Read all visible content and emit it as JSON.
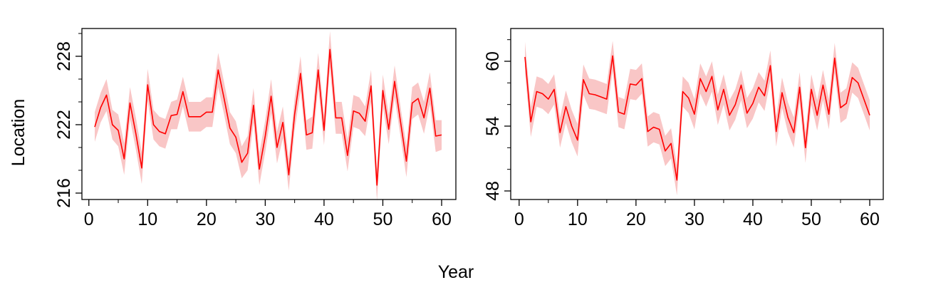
{
  "xlabel": "Year",
  "ylabel": "Location",
  "colors": {
    "line": "#ff0000",
    "band": "#f9c6c6",
    "axis": "#000000"
  },
  "chart_data": [
    {
      "type": "line",
      "xlabel": "",
      "ylabel": "",
      "xlim": [
        1,
        60
      ],
      "ylim": [
        216,
        229
      ],
      "x_ticks": [
        0,
        10,
        20,
        30,
        40,
        50,
        60
      ],
      "y_ticks": [
        216,
        222,
        228
      ],
      "x": [
        1,
        2,
        3,
        4,
        5,
        6,
        7,
        8,
        9,
        10,
        11,
        12,
        13,
        14,
        15,
        16,
        17,
        18,
        19,
        20,
        21,
        22,
        23,
        24,
        25,
        26,
        27,
        28,
        29,
        30,
        31,
        32,
        33,
        34,
        35,
        36,
        37,
        38,
        39,
        40,
        41,
        42,
        43,
        44,
        45,
        46,
        47,
        48,
        49,
        50,
        51,
        52,
        53,
        54,
        55,
        56,
        57,
        58,
        59,
        60
      ],
      "series": [
        {
          "values": [
            221.8,
            223.5,
            224.6,
            222.0,
            221.5,
            219.0,
            223.9,
            221.2,
            218.2,
            225.5,
            222.0,
            221.4,
            221.2,
            222.8,
            222.9,
            224.9,
            222.7,
            222.7,
            222.7,
            223.1,
            223.1,
            226.8,
            224.3,
            221.7,
            220.9,
            218.7,
            219.5,
            223.7,
            218.1,
            221.0,
            224.5,
            220.0,
            222.2,
            217.6,
            222.9,
            226.5,
            221.1,
            221.3,
            226.8,
            221.5,
            228.6,
            222.6,
            222.6,
            219.3,
            223.2,
            223.0,
            222.3,
            225.4,
            216.7,
            225.0,
            221.6,
            225.8,
            222.3,
            218.8,
            223.9,
            224.3,
            222.6,
            225.2,
            221.0,
            221.1
          ],
          "lower": [
            220.5,
            222.2,
            223.2,
            220.7,
            220.1,
            217.6,
            222.5,
            219.8,
            216.8,
            224.1,
            220.7,
            220.1,
            219.9,
            221.6,
            221.6,
            223.6,
            221.4,
            221.4,
            221.4,
            221.8,
            221.8,
            225.3,
            222.9,
            220.3,
            219.5,
            217.3,
            218.0,
            222.2,
            216.7,
            219.6,
            223.0,
            218.6,
            220.8,
            216.2,
            221.5,
            225.0,
            219.8,
            219.9,
            225.3,
            220.2,
            227.0,
            221.2,
            221.2,
            217.9,
            221.8,
            221.6,
            221.0,
            224.0,
            215.3,
            223.6,
            220.3,
            224.4,
            221.0,
            217.4,
            222.5,
            222.9,
            221.2,
            223.8,
            219.6,
            219.8
          ],
          "upper": [
            223.1,
            224.8,
            226.0,
            223.3,
            222.9,
            220.4,
            225.3,
            222.6,
            219.6,
            226.9,
            223.3,
            222.7,
            222.5,
            224.0,
            224.2,
            226.2,
            224.0,
            224.0,
            224.0,
            224.4,
            224.4,
            228.3,
            225.7,
            223.1,
            222.3,
            220.1,
            221.0,
            225.2,
            219.5,
            222.4,
            226.0,
            221.4,
            223.6,
            219.0,
            224.3,
            228.0,
            222.4,
            222.7,
            228.3,
            222.8,
            230.2,
            224.0,
            224.0,
            220.7,
            224.6,
            224.4,
            223.6,
            226.8,
            218.1,
            226.4,
            222.9,
            227.2,
            223.6,
            220.2,
            225.3,
            225.7,
            224.0,
            226.6,
            222.4,
            222.4
          ]
        }
      ]
    },
    {
      "type": "line",
      "xlabel": "",
      "ylabel": "",
      "xlim": [
        1,
        60
      ],
      "ylim": [
        47.5,
        62.5
      ],
      "x_ticks": [
        0,
        10,
        20,
        30,
        40,
        50,
        60
      ],
      "y_ticks": [
        48,
        54,
        60
      ],
      "x": [
        1,
        2,
        3,
        4,
        5,
        6,
        7,
        8,
        9,
        10,
        11,
        12,
        13,
        14,
        15,
        16,
        17,
        18,
        19,
        20,
        21,
        22,
        23,
        24,
        25,
        26,
        27,
        28,
        29,
        30,
        31,
        32,
        33,
        34,
        35,
        36,
        37,
        38,
        39,
        40,
        41,
        42,
        43,
        44,
        45,
        46,
        47,
        48,
        49,
        50,
        51,
        52,
        53,
        54,
        55,
        56,
        57,
        58,
        59,
        60
      ],
      "series": [
        {
          "values": [
            60.4,
            54.4,
            57.2,
            57.0,
            56.5,
            57.4,
            53.4,
            55.8,
            54.0,
            52.7,
            58.3,
            57.0,
            56.9,
            56.7,
            56.5,
            60.5,
            55.3,
            55.1,
            57.9,
            57.8,
            58.4,
            53.5,
            53.9,
            53.7,
            51.7,
            52.4,
            49.0,
            57.2,
            56.6,
            55.1,
            58.4,
            57.2,
            58.6,
            55.5,
            57.4,
            55.0,
            56.0,
            57.8,
            55.2,
            56.1,
            57.6,
            56.8,
            59.6,
            53.5,
            57.1,
            54.8,
            53.4,
            57.6,
            52.0,
            57.4,
            55.0,
            57.8,
            55.1,
            60.3,
            55.7,
            56.1,
            58.5,
            58.0,
            56.5,
            55.0
          ],
          "lower": [
            59.0,
            53.0,
            55.8,
            55.6,
            55.1,
            56.0,
            52.0,
            54.3,
            52.5,
            51.2,
            56.9,
            55.6,
            55.5,
            55.3,
            55.1,
            59.1,
            53.9,
            53.7,
            56.5,
            56.4,
            57.0,
            52.1,
            52.5,
            52.3,
            50.3,
            51.0,
            47.6,
            55.8,
            55.2,
            53.7,
            57.0,
            55.8,
            57.2,
            54.1,
            56.0,
            53.6,
            54.6,
            56.4,
            53.8,
            54.7,
            56.2,
            55.4,
            58.2,
            52.1,
            55.7,
            53.4,
            52.0,
            56.2,
            50.6,
            56.0,
            53.6,
            56.4,
            53.7,
            58.9,
            54.3,
            54.7,
            57.1,
            56.6,
            55.1,
            53.6
          ],
          "upper": [
            61.8,
            55.8,
            58.6,
            58.4,
            57.9,
            58.8,
            54.8,
            57.3,
            55.5,
            54.2,
            59.7,
            58.4,
            58.3,
            58.1,
            57.9,
            61.9,
            56.7,
            56.5,
            59.3,
            59.2,
            59.8,
            54.9,
            55.3,
            55.1,
            53.1,
            53.8,
            50.4,
            58.6,
            58.0,
            56.5,
            59.8,
            58.6,
            60.0,
            56.9,
            58.8,
            56.4,
            57.4,
            59.2,
            56.6,
            57.5,
            59.0,
            58.2,
            61.0,
            54.9,
            58.5,
            56.2,
            54.8,
            59.0,
            53.4,
            58.8,
            56.4,
            59.2,
            56.5,
            61.7,
            57.1,
            57.5,
            59.9,
            59.4,
            57.9,
            56.4
          ]
        }
      ]
    }
  ]
}
